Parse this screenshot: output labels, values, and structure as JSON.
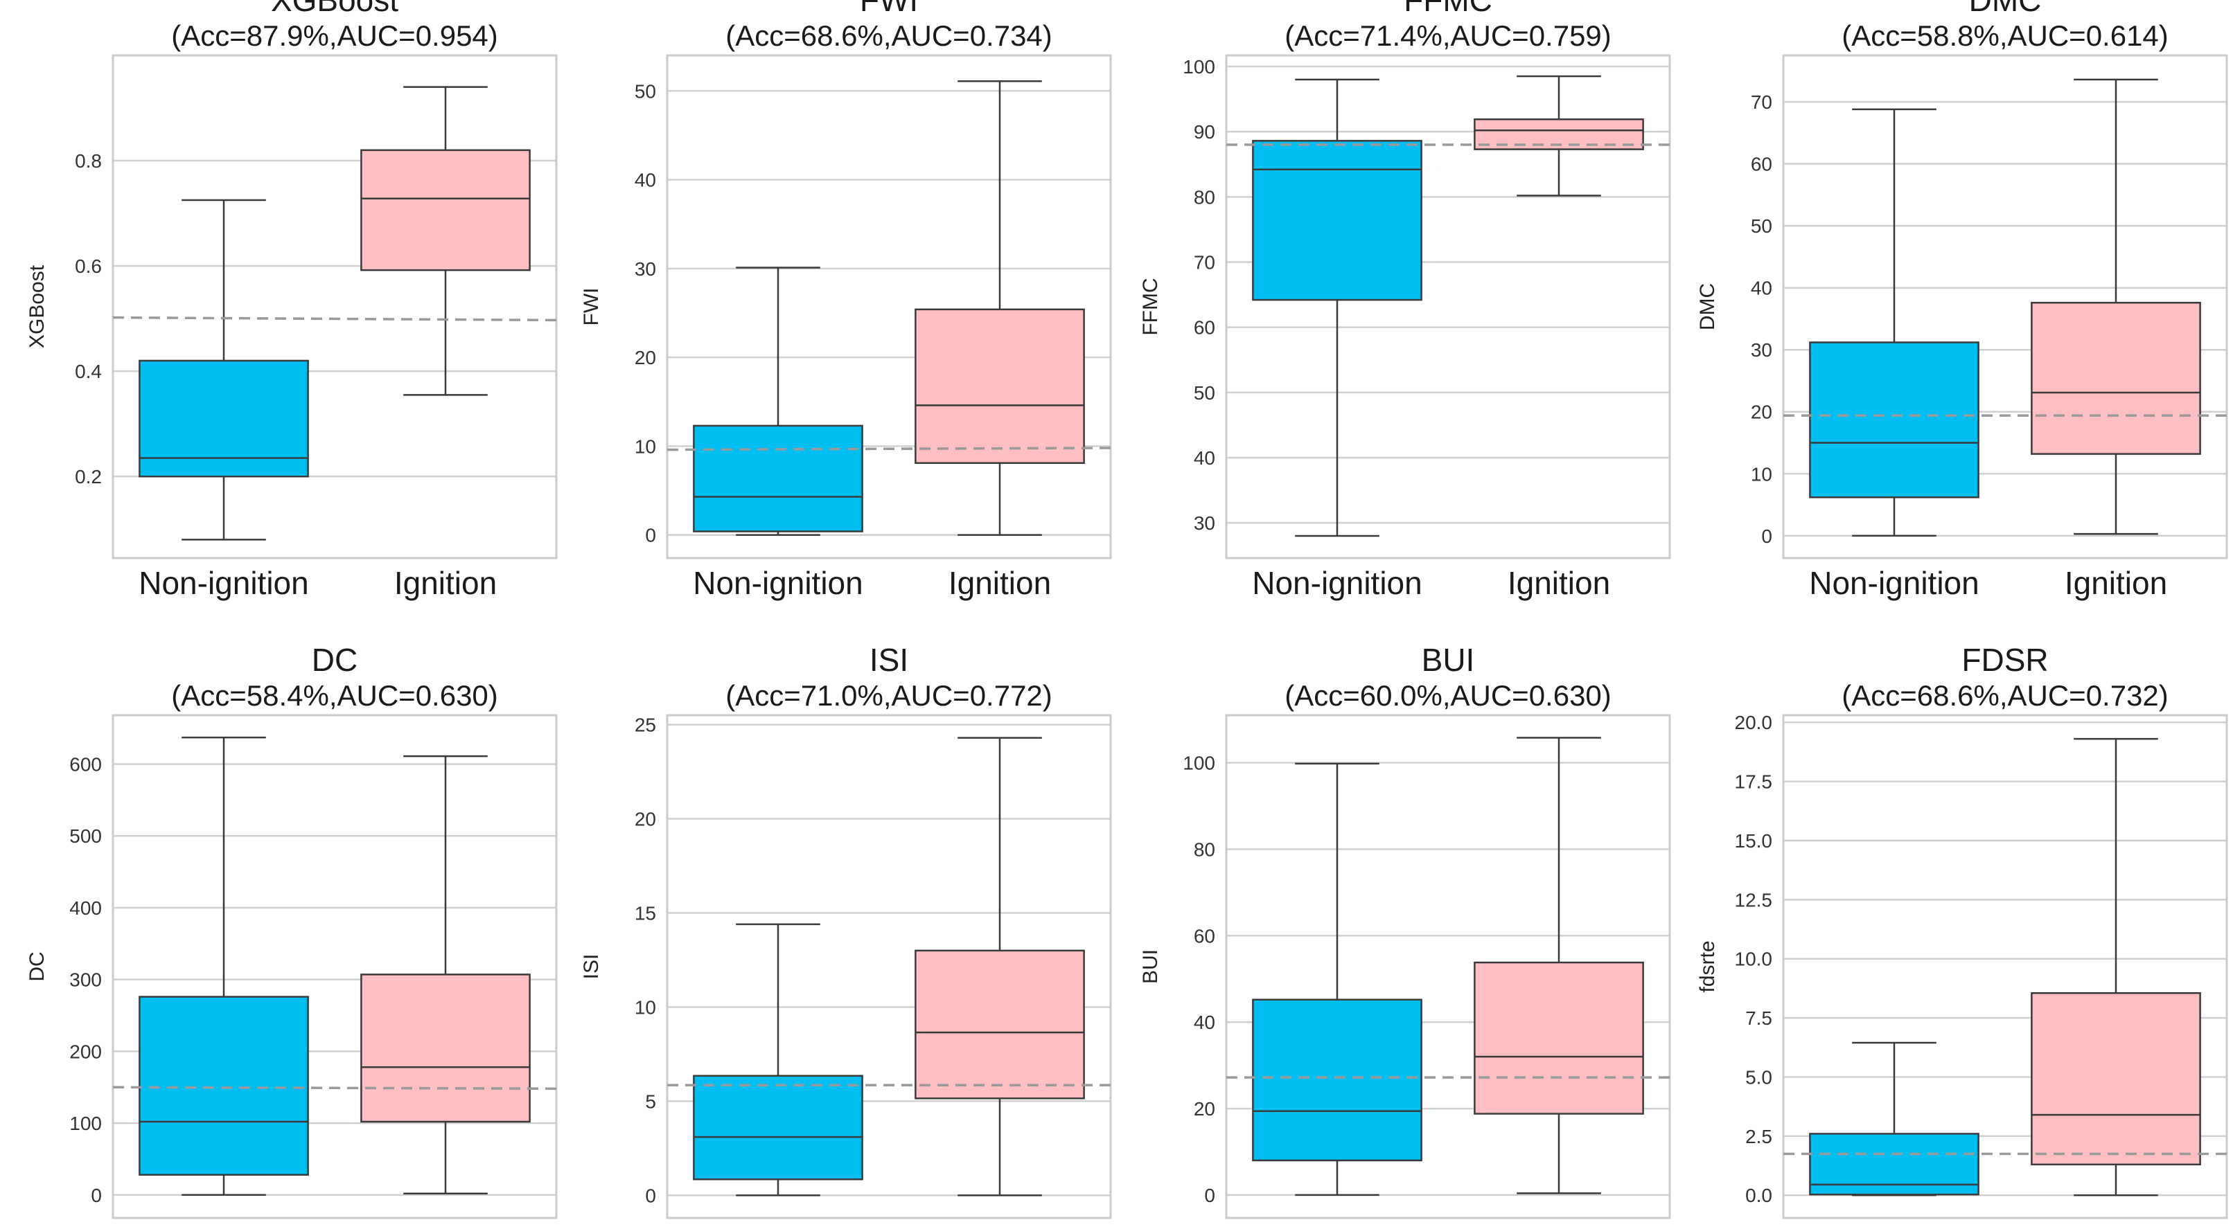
{
  "figure": {
    "colors": {
      "non_ignition": "#00BDF2",
      "ignition": "#FFBEC1",
      "frame": "#cccccc",
      "grid": "#d0d0d0",
      "whisker": "#3a3a3a",
      "threshold": "#9a9a9a"
    }
  },
  "chart_data": [
    {
      "type": "box",
      "title": "XGBoost",
      "subtitle": "(Acc=87.9%,AUC=0.954)",
      "ylabel": "XGBoost",
      "categories": [
        "Non-ignition",
        "Ignition"
      ],
      "ylim": [
        0.045,
        1.0
      ],
      "yticks": [
        0.2,
        0.4,
        0.6,
        0.8
      ],
      "tick_labels": [
        "0.2",
        "0.4",
        "0.6",
        "0.8"
      ],
      "boxes": [
        {
          "whislo": 0.08,
          "q1": 0.2,
          "med": 0.235,
          "q3": 0.42,
          "whishi": 0.725
        },
        {
          "whislo": 0.355,
          "q1": 0.592,
          "med": 0.728,
          "q3": 0.82,
          "whishi": 0.94
        }
      ],
      "threshold": [
        0.502,
        0.497
      ]
    },
    {
      "type": "box",
      "title": "FWI",
      "subtitle": "(Acc=68.6%,AUC=0.734)",
      "ylabel": "FWI",
      "categories": [
        "Non-ignition",
        "Ignition"
      ],
      "ylim": [
        -2.6,
        54.0
      ],
      "yticks": [
        0,
        10,
        20,
        30,
        40,
        50
      ],
      "tick_labels": [
        "0",
        "10",
        "20",
        "30",
        "40",
        "50"
      ],
      "boxes": [
        {
          "whislo": 0.0,
          "q1": 0.4,
          "med": 4.3,
          "q3": 12.3,
          "whishi": 30.1
        },
        {
          "whislo": 0.0,
          "q1": 8.1,
          "med": 14.6,
          "q3": 25.4,
          "whishi": 51.1
        }
      ],
      "threshold": [
        9.6,
        9.8
      ]
    },
    {
      "type": "box",
      "title": "FFMC",
      "subtitle": "(Acc=71.4%,AUC=0.759)",
      "ylabel": "FFMC",
      "categories": [
        "Non-ignition",
        "Ignition"
      ],
      "ylim": [
        24.6,
        101.7
      ],
      "yticks": [
        30,
        40,
        50,
        60,
        70,
        80,
        90,
        100
      ],
      "tick_labels": [
        "30",
        "40",
        "50",
        "60",
        "70",
        "80",
        "90",
        "100"
      ],
      "boxes": [
        {
          "whislo": 28.0,
          "q1": 64.2,
          "med": 84.2,
          "q3": 88.6,
          "whishi": 98.0
        },
        {
          "whislo": 80.2,
          "q1": 87.3,
          "med": 90.2,
          "q3": 91.9,
          "whishi": 98.5
        }
      ],
      "threshold": [
        88.0,
        88.0
      ]
    },
    {
      "type": "box",
      "title": "DMC",
      "subtitle": "(Acc=58.8%,AUC=0.614)",
      "ylabel": "DMC",
      "categories": [
        "Non-ignition",
        "Ignition"
      ],
      "ylim": [
        -3.6,
        77.5
      ],
      "yticks": [
        0,
        10,
        20,
        30,
        40,
        50,
        60,
        70
      ],
      "tick_labels": [
        "0",
        "10",
        "20",
        "30",
        "40",
        "50",
        "60",
        "70"
      ],
      "boxes": [
        {
          "whislo": 0.0,
          "q1": 6.2,
          "med": 15.0,
          "q3": 31.2,
          "whishi": 68.8
        },
        {
          "whislo": 0.3,
          "q1": 13.2,
          "med": 23.1,
          "q3": 37.6,
          "whishi": 73.6
        }
      ],
      "threshold": [
        19.4,
        19.4
      ]
    },
    {
      "type": "box",
      "title": "DC",
      "subtitle": "(Acc=58.4%,AUC=0.630)",
      "ylabel": "DC",
      "categories": [
        "Non-ignition",
        "Ignition"
      ],
      "ylim": [
        -32.0,
        668.0
      ],
      "yticks": [
        0,
        100,
        200,
        300,
        400,
        500,
        600
      ],
      "tick_labels": [
        "0",
        "100",
        "200",
        "300",
        "400",
        "500",
        "600"
      ],
      "boxes": [
        {
          "whislo": 0.0,
          "q1": 28.0,
          "med": 102.0,
          "q3": 276.0,
          "whishi": 637.0
        },
        {
          "whislo": 2.0,
          "q1": 102.0,
          "med": 178.0,
          "q3": 307.0,
          "whishi": 611.0
        }
      ],
      "threshold": [
        150.0,
        148.0
      ]
    },
    {
      "type": "box",
      "title": "ISI",
      "subtitle": "(Acc=71.0%,AUC=0.772)",
      "ylabel": "ISI",
      "categories": [
        "Non-ignition",
        "Ignition"
      ],
      "ylim": [
        -1.2,
        25.5
      ],
      "yticks": [
        0,
        5,
        10,
        15,
        20,
        25
      ],
      "tick_labels": [
        "0",
        "5",
        "10",
        "15",
        "20",
        "25"
      ],
      "boxes": [
        {
          "whislo": 0.0,
          "q1": 0.85,
          "med": 3.1,
          "q3": 6.35,
          "whishi": 14.4
        },
        {
          "whislo": 0.0,
          "q1": 5.15,
          "med": 8.65,
          "q3": 13.0,
          "whishi": 24.3
        }
      ],
      "threshold": [
        5.85,
        5.85
      ]
    },
    {
      "type": "box",
      "title": "BUI",
      "subtitle": "(Acc=60.0%,AUC=0.630)",
      "ylabel": "BUI",
      "categories": [
        "Non-ignition",
        "Ignition"
      ],
      "ylim": [
        -5.3,
        111.0
      ],
      "yticks": [
        0,
        20,
        40,
        60,
        80,
        100
      ],
      "tick_labels": [
        "0",
        "20",
        "40",
        "60",
        "80",
        "100"
      ],
      "boxes": [
        {
          "whislo": 0.0,
          "q1": 8.0,
          "med": 19.4,
          "q3": 45.2,
          "whishi": 99.8
        },
        {
          "whislo": 0.4,
          "q1": 18.8,
          "med": 32.0,
          "q3": 53.8,
          "whishi": 105.8
        }
      ],
      "threshold": [
        27.2,
        27.2
      ]
    },
    {
      "type": "box",
      "title": "FDSR",
      "subtitle": "(Acc=68.6%,AUC=0.732)",
      "ylabel": "fdsrte",
      "categories": [
        "Non-ignition",
        "Ignition"
      ],
      "ylim": [
        -0.96,
        20.3
      ],
      "yticks": [
        0.0,
        2.5,
        5.0,
        7.5,
        10.0,
        12.5,
        15.0,
        17.5,
        20.0
      ],
      "tick_labels": [
        "0.0",
        "2.5",
        "5.0",
        "7.5",
        "10.0",
        "12.5",
        "15.0",
        "17.5",
        "20.0"
      ],
      "boxes": [
        {
          "whislo": 0.0,
          "q1": 0.03,
          "med": 0.45,
          "q3": 2.6,
          "whishi": 6.45
        },
        {
          "whislo": 0.0,
          "q1": 1.3,
          "med": 3.4,
          "q3": 8.55,
          "whishi": 19.3
        }
      ],
      "threshold": [
        1.75,
        1.75
      ]
    }
  ]
}
